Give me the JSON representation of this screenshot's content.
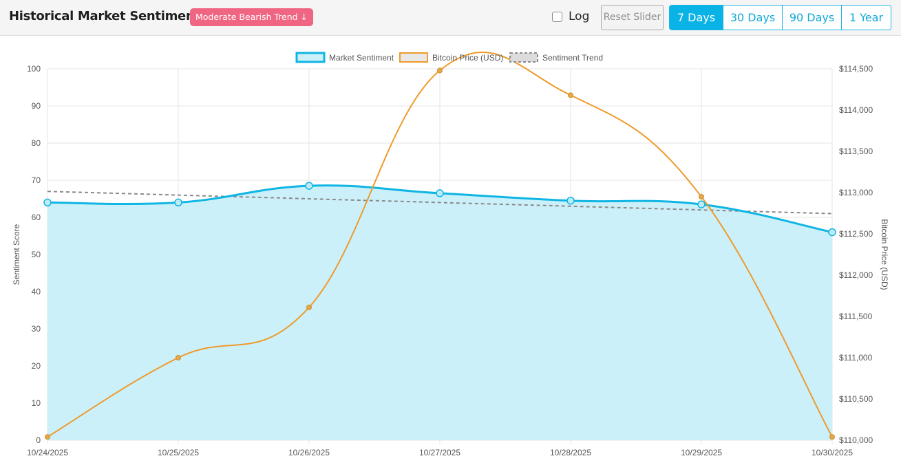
{
  "header": {
    "title": "Historical Market Sentiment",
    "badge": "Moderate Bearish Trend ↓",
    "log_label": "Log",
    "reset_label": "Reset Slider",
    "ranges": [
      "7 Days",
      "30 Days",
      "90 Days",
      "1 Year"
    ],
    "active_range": "7 Days"
  },
  "chart_data": {
    "type": "line",
    "x": [
      "10/24/2025",
      "10/25/2025",
      "10/26/2025",
      "10/27/2025",
      "10/28/2025",
      "10/29/2025",
      "10/30/2025"
    ],
    "series": [
      {
        "name": "Market Sentiment",
        "axis": "left",
        "values": [
          64,
          64,
          68.5,
          66.5,
          64.5,
          63.5,
          56
        ],
        "color": "#0fb5e3",
        "fill": "#cbf0f9"
      },
      {
        "name": "Bitcoin Price (USD)",
        "axis": "right",
        "values": [
          110040,
          111000,
          111610,
          114480,
          114180,
          112950,
          110040
        ],
        "color": "#ef9a2a"
      },
      {
        "name": "Sentiment Trend",
        "axis": "left",
        "values": [
          67,
          66,
          65,
          64,
          63,
          62,
          61
        ],
        "color": "#8a8a8a",
        "dashed": true
      }
    ],
    "ylabel": "Sentiment Score",
    "y2label": "Bitcoin Price (USD)",
    "ylim": [
      0,
      100
    ],
    "yticks": [
      "0",
      "10",
      "20",
      "30",
      "40",
      "50",
      "60",
      "70",
      "80",
      "90",
      "100"
    ],
    "y2lim": [
      110000,
      114500
    ],
    "y2ticks": [
      "$110,000",
      "$110,500",
      "$111,000",
      "$111,500",
      "$112,000",
      "$112,500",
      "$113,000",
      "$113,500",
      "$114,000",
      "$114,500"
    ],
    "grid": true,
    "legend": "top-center"
  }
}
